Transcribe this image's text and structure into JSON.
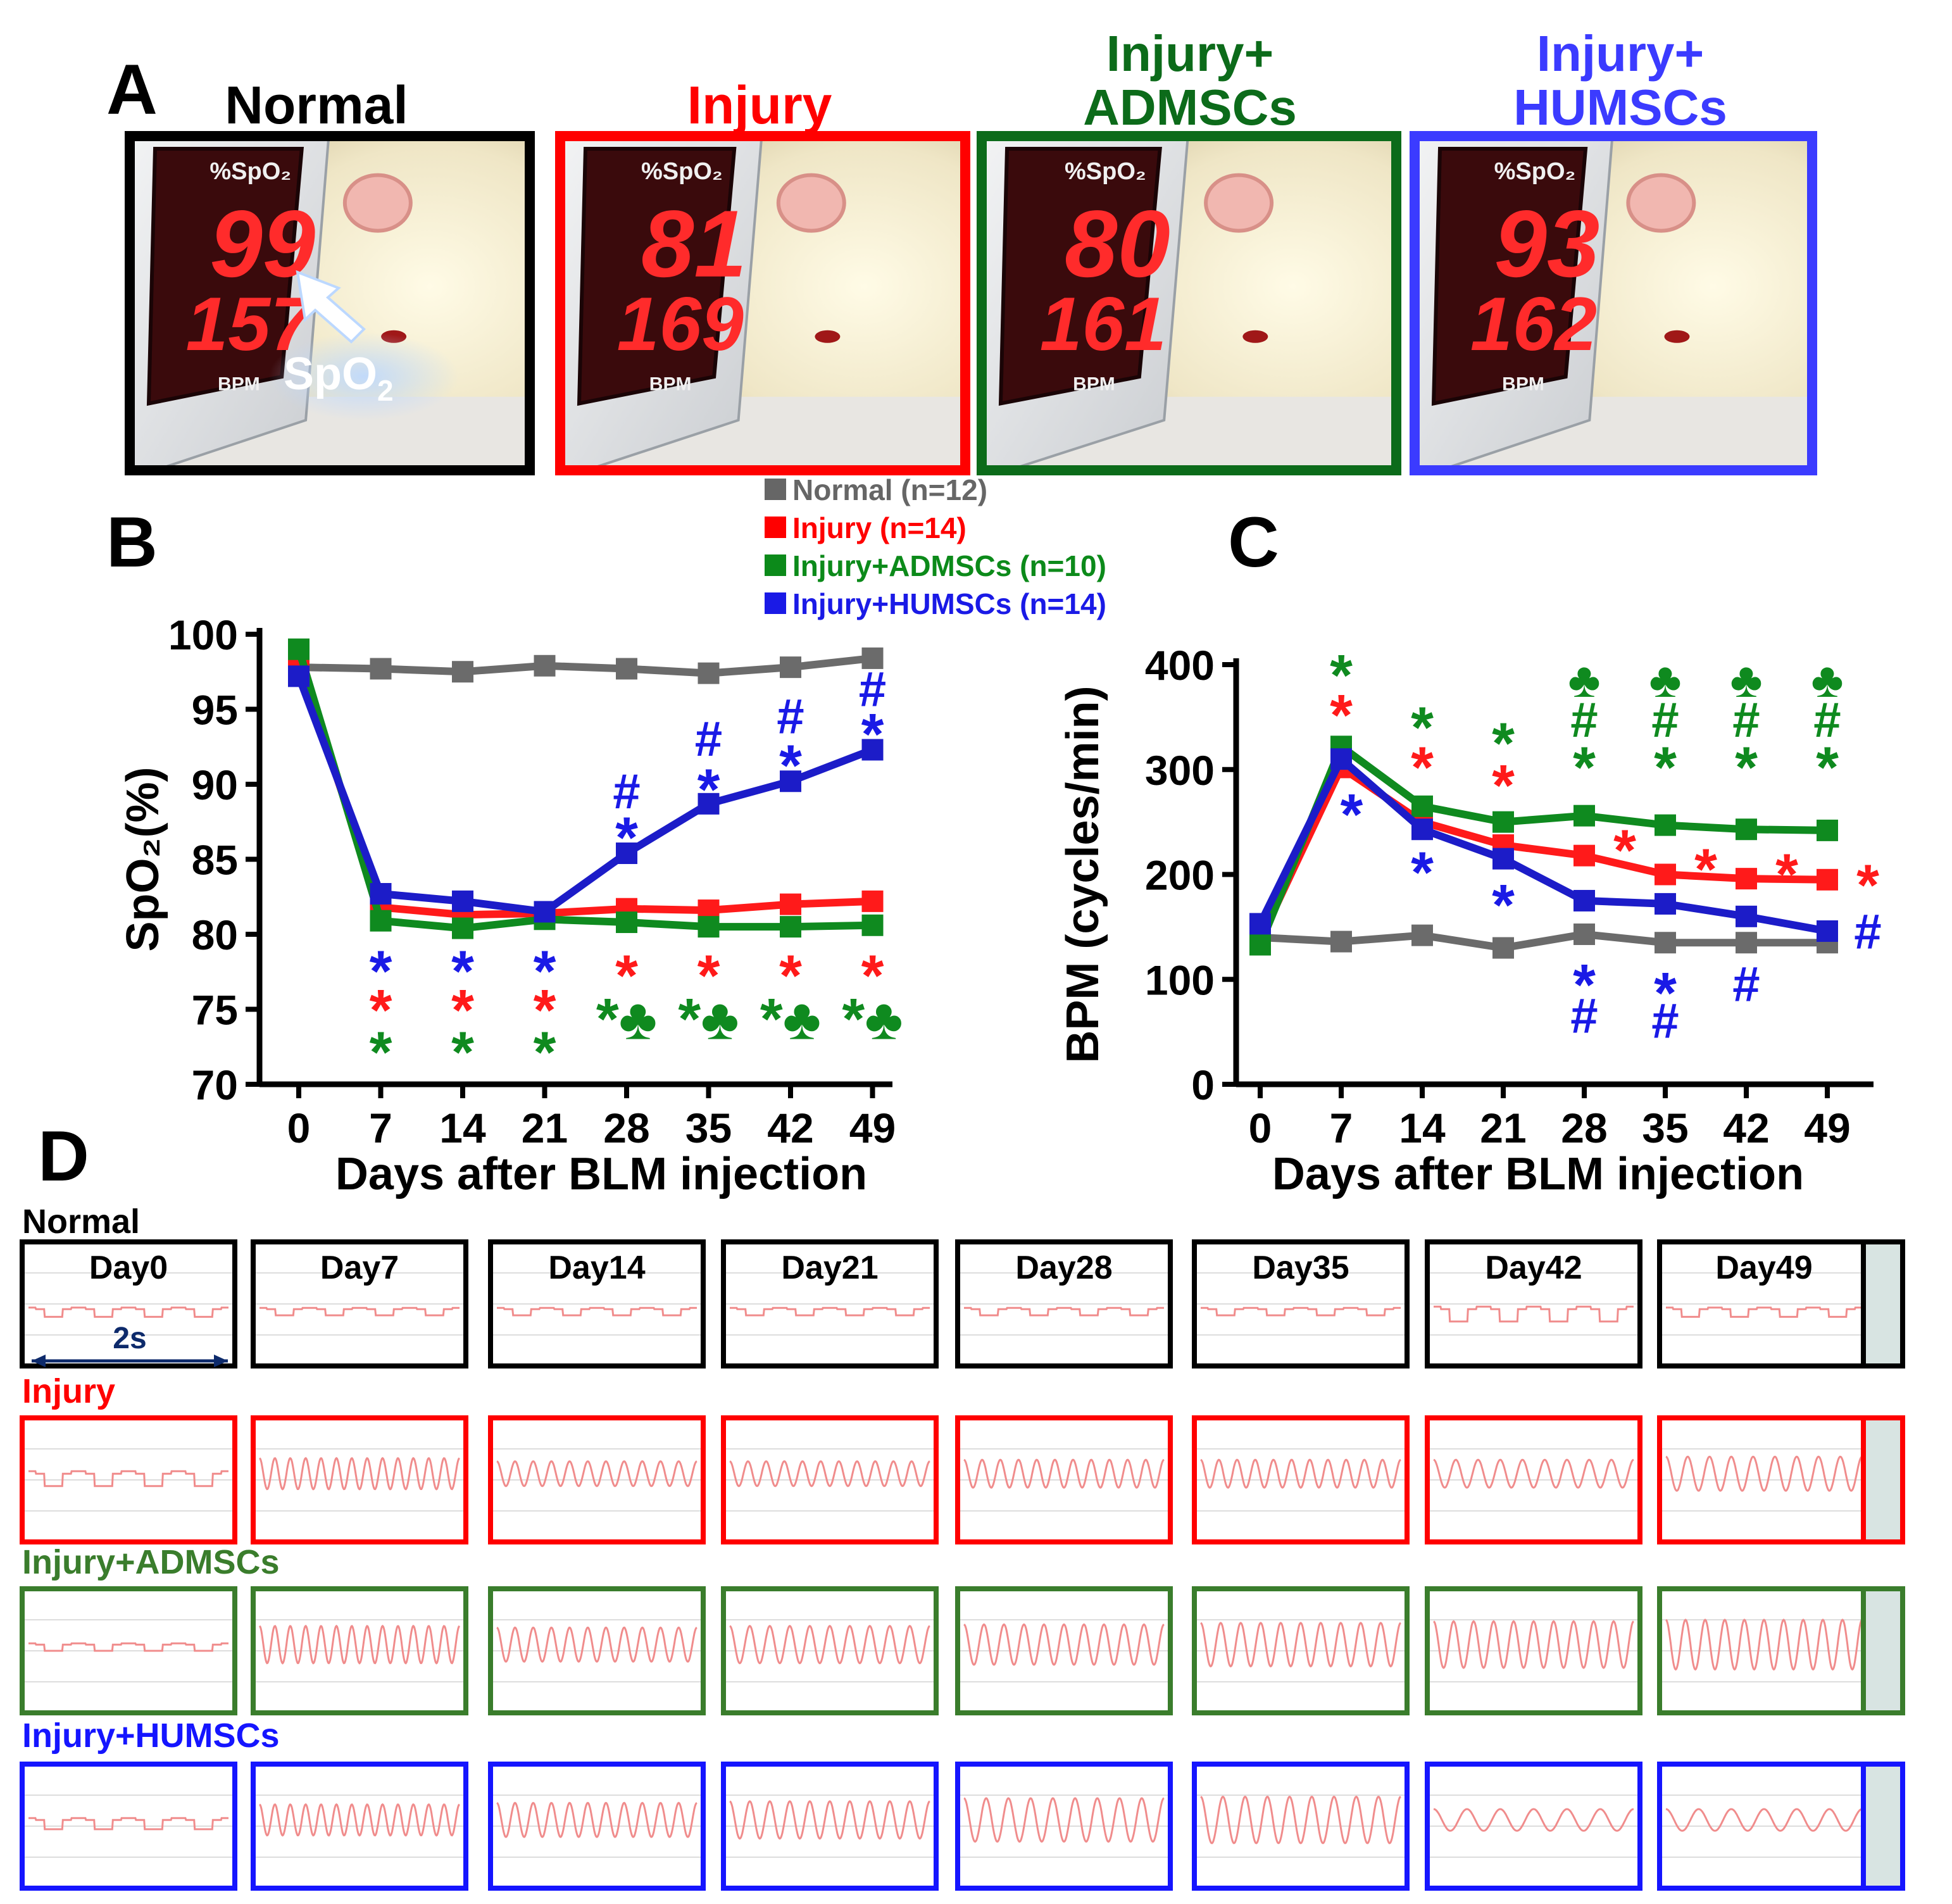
{
  "panels": {
    "a": {
      "letter": "A",
      "arrow_label": "SpO",
      "arrow_label_sub": "2",
      "groups": [
        {
          "title": [
            "Normal"
          ],
          "color": "#000000",
          "spo2": "99",
          "bpm": "157",
          "spo2_unit": "%SpO₂",
          "bpm_unit": "BPM"
        },
        {
          "title": [
            "Injury"
          ],
          "color": "#ff0000",
          "spo2": "81",
          "bpm": "169",
          "spo2_unit": "%SpO₂",
          "bpm_unit": "BPM"
        },
        {
          "title": [
            "Injury+",
            "ADMSCs"
          ],
          "color": "#0c6b1a",
          "spo2": "80",
          "bpm": "161",
          "spo2_unit": "%SpO₂",
          "bpm_unit": "BPM"
        },
        {
          "title": [
            "Injury+",
            "HUMSCs"
          ],
          "color": "#3b3bff",
          "spo2": "93",
          "bpm": "162",
          "spo2_unit": "%SpO₂",
          "bpm_unit": "BPM"
        }
      ]
    },
    "b": {
      "letter": "B"
    },
    "c": {
      "letter": "C"
    },
    "d": {
      "letter": "D",
      "scale_label": "2s",
      "days": [
        "Day0",
        "Day7",
        "Day14",
        "Day21",
        "Day28",
        "Day35",
        "Day42",
        "Day49"
      ],
      "rows": [
        {
          "label": "Normal",
          "color": "#000000",
          "cycles": [
            4,
            4,
            4,
            4,
            4,
            4,
            4,
            4
          ],
          "depth": [
            0.25,
            0.2,
            0.2,
            0.2,
            0.2,
            0.2,
            0.4,
            0.25
          ]
        },
        {
          "label": "Injury",
          "color": "#ff0000",
          "cycles": [
            4,
            13,
            11,
            11,
            11,
            11,
            9,
            9
          ],
          "depth": [
            0.4,
            0.5,
            0.4,
            0.4,
            0.45,
            0.45,
            0.45,
            0.55
          ]
        },
        {
          "label": "Injury+ADMSCs",
          "color": "#3a7d2c",
          "cycles": [
            4,
            13,
            11,
            10,
            10,
            10,
            10,
            10
          ],
          "depth": [
            0.2,
            0.6,
            0.55,
            0.6,
            0.65,
            0.7,
            0.75,
            0.8
          ]
        },
        {
          "label": "Injury+HUMSCs",
          "color": "#1515ff",
          "cycles": [
            4,
            13,
            11,
            10,
            9,
            9,
            6,
            6
          ],
          "depth": [
            0.3,
            0.5,
            0.55,
            0.6,
            0.7,
            0.75,
            0.35,
            0.35
          ]
        }
      ]
    }
  },
  "legend": [
    {
      "text": "Normal (n=12)",
      "color": "#666666"
    },
    {
      "text": "Injury (n=14)",
      "color": "#ff0000"
    },
    {
      "text": "Injury+ADMSCs (n=10)",
      "color": "#0c8a1a"
    },
    {
      "text": "Injury+HUMSCs (n=14)",
      "color": "#1a1ae6"
    }
  ],
  "chart_data": [
    {
      "type": "line",
      "panel": "B",
      "x": [
        0,
        7,
        14,
        21,
        28,
        35,
        42,
        49
      ],
      "xlabel": "Days after BLM injection",
      "ylabel": "SpO₂(%)",
      "ylim": [
        70,
        100
      ],
      "yticks": [
        70,
        75,
        80,
        85,
        90,
        95,
        100
      ],
      "series": [
        {
          "name": "Normal (n=12)",
          "color": "#6b6b6b",
          "values": [
            97.8,
            97.7,
            97.5,
            97.9,
            97.7,
            97.4,
            97.8,
            98.4
          ]
        },
        {
          "name": "Injury (n=14)",
          "color": "#ff1a1a",
          "values": [
            98.0,
            81.8,
            81.3,
            81.4,
            81.7,
            81.6,
            82.0,
            82.2
          ]
        },
        {
          "name": "Injury+ADMSCs (n=10)",
          "color": "#0f8a1f",
          "values": [
            99.0,
            80.9,
            80.4,
            81.0,
            80.8,
            80.5,
            80.5,
            80.6
          ]
        },
        {
          "name": "Injury+HUMSCs (n=14)",
          "color": "#1c1cc8",
          "values": [
            97.2,
            82.7,
            82.2,
            81.5,
            85.4,
            88.7,
            90.2,
            92.3
          ]
        }
      ],
      "annotations": [
        {
          "x": 7,
          "y": 77.9,
          "text": "*",
          "color": "#1a1ae6"
        },
        {
          "x": 7,
          "y": 75.3,
          "text": "*",
          "color": "#ff1a1a"
        },
        {
          "x": 7,
          "y": 72.5,
          "text": "*",
          "color": "#0f8a1f"
        },
        {
          "x": 14,
          "y": 77.9,
          "text": "*",
          "color": "#1a1ae6"
        },
        {
          "x": 14,
          "y": 75.3,
          "text": "*",
          "color": "#ff1a1a"
        },
        {
          "x": 14,
          "y": 72.5,
          "text": "*",
          "color": "#0f8a1f"
        },
        {
          "x": 21,
          "y": 77.9,
          "text": "*",
          "color": "#1a1ae6"
        },
        {
          "x": 21,
          "y": 75.3,
          "text": "*",
          "color": "#ff1a1a"
        },
        {
          "x": 21,
          "y": 72.5,
          "text": "*",
          "color": "#0f8a1f"
        },
        {
          "x": 28,
          "y": 77.6,
          "text": "*",
          "color": "#ff1a1a"
        },
        {
          "x": 28,
          "y": 74.7,
          "text": "*♣",
          "color": "#0f8a1f"
        },
        {
          "x": 35,
          "y": 77.6,
          "text": "*",
          "color": "#ff1a1a"
        },
        {
          "x": 35,
          "y": 74.7,
          "text": "*♣",
          "color": "#0f8a1f"
        },
        {
          "x": 42,
          "y": 77.6,
          "text": "*",
          "color": "#ff1a1a"
        },
        {
          "x": 42,
          "y": 74.7,
          "text": "*♣",
          "color": "#0f8a1f"
        },
        {
          "x": 49,
          "y": 77.6,
          "text": "*",
          "color": "#ff1a1a"
        },
        {
          "x": 49,
          "y": 74.7,
          "text": "*♣",
          "color": "#0f8a1f"
        },
        {
          "x": 28,
          "y": 86.8,
          "text": "*",
          "color": "#1a1ae6"
        },
        {
          "x": 28,
          "y": 89.5,
          "text": "#",
          "color": "#1a1ae6"
        },
        {
          "x": 35,
          "y": 90.0,
          "text": "*",
          "color": "#1a1ae6"
        },
        {
          "x": 35,
          "y": 93.0,
          "text": "#",
          "color": "#1a1ae6"
        },
        {
          "x": 42,
          "y": 91.6,
          "text": "*",
          "color": "#1a1ae6"
        },
        {
          "x": 42,
          "y": 94.5,
          "text": "#",
          "color": "#1a1ae6"
        },
        {
          "x": 49,
          "y": 93.7,
          "text": "*",
          "color": "#1a1ae6"
        },
        {
          "x": 49,
          "y": 96.3,
          "text": "#",
          "color": "#1a1ae6"
        }
      ]
    },
    {
      "type": "line",
      "panel": "C",
      "x": [
        0,
        7,
        14,
        21,
        28,
        35,
        42,
        49
      ],
      "xlabel": "Days after BLM injection",
      "ylabel": "BPM (cycles/min)",
      "ylim": [
        0,
        400
      ],
      "yticks": [
        0,
        100,
        200,
        300,
        400
      ],
      "series": [
        {
          "name": "Normal (n=12)",
          "color": "#6b6b6b",
          "values": [
            140,
            136,
            142,
            130,
            143,
            135,
            135,
            135
          ]
        },
        {
          "name": "Injury (n=14)",
          "color": "#ff1a1a",
          "values": [
            138,
            302,
            250,
            228,
            218,
            200,
            196,
            195
          ]
        },
        {
          "name": "Injury+ADMSCs (n=10)",
          "color": "#0f8a1f",
          "values": [
            133,
            322,
            265,
            250,
            256,
            247,
            243,
            242
          ]
        },
        {
          "name": "Injury+HUMSCs (n=14)",
          "color": "#1c1cc8",
          "values": [
            153,
            310,
            243,
            215,
            175,
            172,
            160,
            146
          ]
        }
      ],
      "annotations": [
        {
          "x": 7,
          "y": 395,
          "text": "*",
          "color": "#0f8a1f"
        },
        {
          "x": 7,
          "y": 357,
          "text": "*",
          "color": "#ff1a1a"
        },
        {
          "x": 7.9,
          "y": 262,
          "text": "*",
          "color": "#1a1ae6"
        },
        {
          "x": 14,
          "y": 345,
          "text": "*",
          "color": "#0f8a1f"
        },
        {
          "x": 14,
          "y": 307,
          "text": "*",
          "color": "#ff1a1a"
        },
        {
          "x": 14,
          "y": 207,
          "text": "*",
          "color": "#1a1ae6"
        },
        {
          "x": 21,
          "y": 330,
          "text": "*",
          "color": "#0f8a1f"
        },
        {
          "x": 21,
          "y": 290,
          "text": "*",
          "color": "#ff1a1a"
        },
        {
          "x": 21,
          "y": 176,
          "text": "*",
          "color": "#1a1ae6"
        },
        {
          "x": 28,
          "y": 385,
          "text": "♣",
          "color": "#0f8a1f"
        },
        {
          "x": 28,
          "y": 347,
          "text": "#",
          "color": "#0f8a1f"
        },
        {
          "x": 28,
          "y": 307,
          "text": "*",
          "color": "#0f8a1f"
        },
        {
          "x": 35,
          "y": 385,
          "text": "♣",
          "color": "#0f8a1f"
        },
        {
          "x": 35,
          "y": 347,
          "text": "#",
          "color": "#0f8a1f"
        },
        {
          "x": 35,
          "y": 307,
          "text": "*",
          "color": "#0f8a1f"
        },
        {
          "x": 42,
          "y": 385,
          "text": "♣",
          "color": "#0f8a1f"
        },
        {
          "x": 42,
          "y": 347,
          "text": "#",
          "color": "#0f8a1f"
        },
        {
          "x": 42,
          "y": 307,
          "text": "*",
          "color": "#0f8a1f"
        },
        {
          "x": 49,
          "y": 385,
          "text": "♣",
          "color": "#0f8a1f"
        },
        {
          "x": 49,
          "y": 347,
          "text": "#",
          "color": "#0f8a1f"
        },
        {
          "x": 49,
          "y": 307,
          "text": "*",
          "color": "#0f8a1f"
        },
        {
          "x": 31.5,
          "y": 228,
          "text": "*",
          "color": "#ff1a1a"
        },
        {
          "x": 38.5,
          "y": 210,
          "text": "*",
          "color": "#ff1a1a"
        },
        {
          "x": 45.5,
          "y": 205,
          "text": "*",
          "color": "#ff1a1a"
        },
        {
          "x": 52.5,
          "y": 195,
          "text": "*",
          "color": "#ff1a1a"
        },
        {
          "x": 52.5,
          "y": 145,
          "text": "#",
          "color": "#1a1ae6"
        },
        {
          "x": 28,
          "y": 100,
          "text": "*",
          "color": "#1a1ae6"
        },
        {
          "x": 28,
          "y": 65,
          "text": "#",
          "color": "#1a1ae6"
        },
        {
          "x": 35,
          "y": 92,
          "text": "*",
          "color": "#1a1ae6"
        },
        {
          "x": 35,
          "y": 60,
          "text": "#",
          "color": "#1a1ae6"
        },
        {
          "x": 42,
          "y": 95,
          "text": "#",
          "color": "#1a1ae6"
        }
      ]
    }
  ]
}
